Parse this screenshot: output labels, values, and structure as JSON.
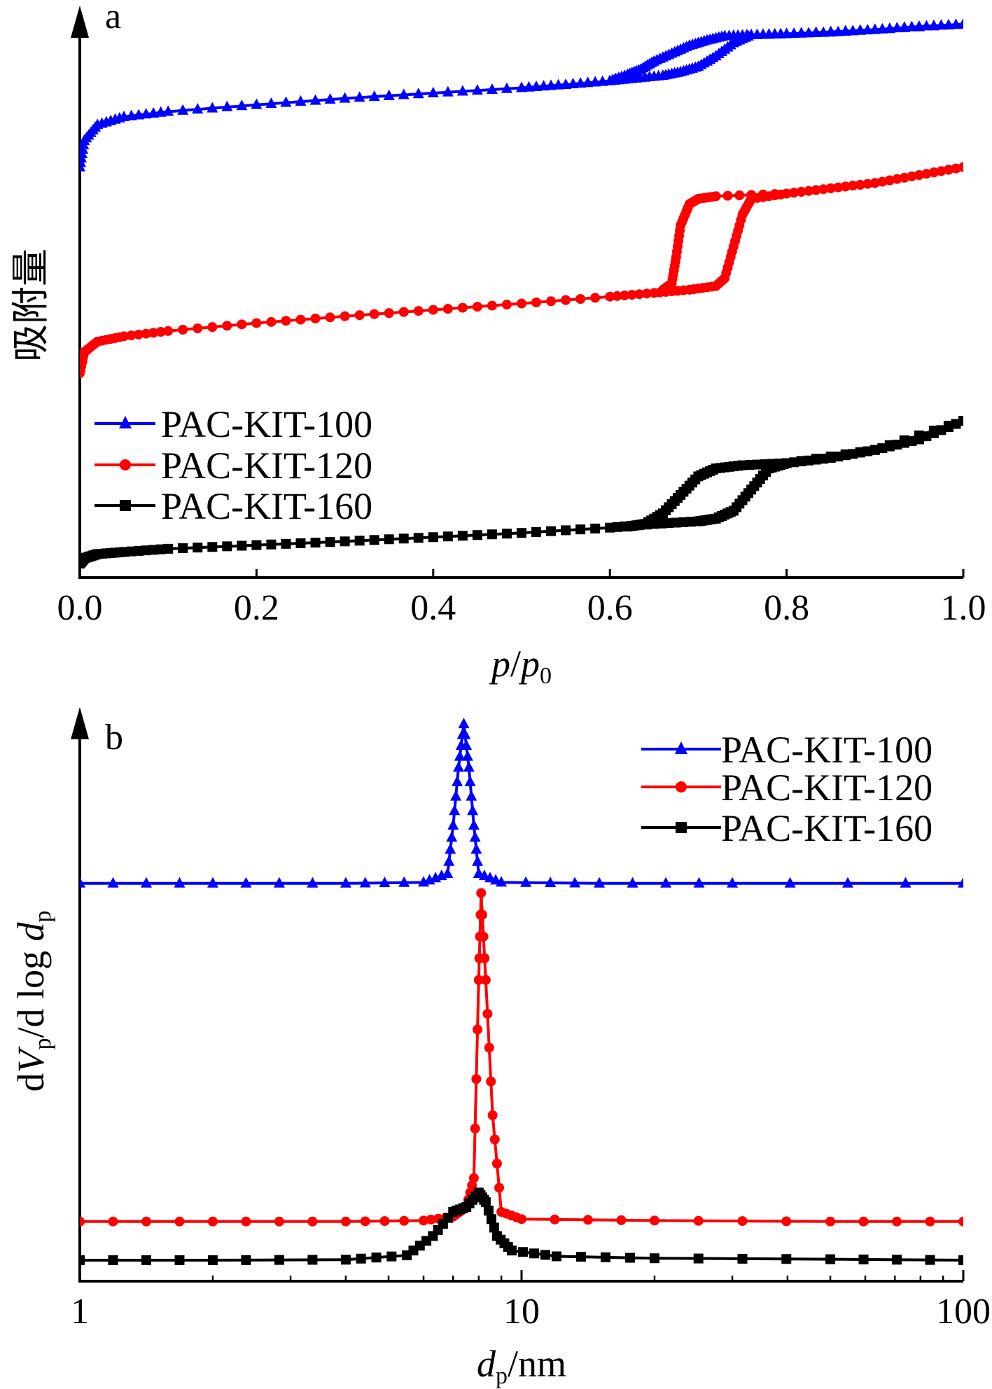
{
  "chart_data": [
    {
      "panel": "a",
      "type": "line",
      "xlabel": "p/p0",
      "xlabel_parts": {
        "main": "p",
        "slash": "/",
        "main2": "p",
        "sub": "0"
      },
      "ylabel": "吸附量",
      "xlim": [
        0.0,
        1.0
      ],
      "x_ticks": [
        0.0,
        0.2,
        0.4,
        0.6,
        0.8,
        1.0
      ],
      "x_tick_labels": [
        "0.0",
        "0.2",
        "0.4",
        "0.6",
        "0.8",
        "1.0"
      ],
      "y_ticks_shown": false,
      "legend_position": "lower-left",
      "series": [
        {
          "name": "PAC-KIT-100",
          "color": "#0000FF",
          "marker": "triangle",
          "adsorption": [
            [
              0.0,
              0.75
            ],
            [
              0.005,
              0.8
            ],
            [
              0.02,
              0.83
            ],
            [
              0.05,
              0.845
            ],
            [
              0.1,
              0.855
            ],
            [
              0.2,
              0.868
            ],
            [
              0.3,
              0.88
            ],
            [
              0.4,
              0.89
            ],
            [
              0.5,
              0.9
            ],
            [
              0.55,
              0.906
            ],
            [
              0.6,
              0.913
            ],
            [
              0.63,
              0.918
            ],
            [
              0.66,
              0.923
            ],
            [
              0.68,
              0.93
            ],
            [
              0.7,
              0.94
            ],
            [
              0.72,
              0.96
            ],
            [
              0.74,
              0.985
            ],
            [
              0.76,
              1.0
            ],
            [
              0.8,
              1.002
            ],
            [
              0.85,
              1.005
            ],
            [
              0.9,
              1.01
            ],
            [
              0.95,
              1.016
            ],
            [
              1.0,
              1.02
            ]
          ],
          "desorption": [
            [
              1.0,
              1.02
            ],
            [
              0.9,
              1.01
            ],
            [
              0.8,
              1.002
            ],
            [
              0.76,
              1.0
            ],
            [
              0.73,
              0.998
            ],
            [
              0.71,
              0.99
            ],
            [
              0.69,
              0.98
            ],
            [
              0.67,
              0.965
            ],
            [
              0.65,
              0.95
            ],
            [
              0.635,
              0.935
            ],
            [
              0.62,
              0.925
            ],
            [
              0.6,
              0.913
            ]
          ]
        },
        {
          "name": "PAC-KIT-120",
          "color": "#FF0000",
          "marker": "circle",
          "adsorption": [
            [
              0.0,
              0.36
            ],
            [
              0.005,
              0.4
            ],
            [
              0.02,
              0.42
            ],
            [
              0.05,
              0.43
            ],
            [
              0.1,
              0.44
            ],
            [
              0.2,
              0.455
            ],
            [
              0.3,
              0.468
            ],
            [
              0.4,
              0.48
            ],
            [
              0.5,
              0.492
            ],
            [
              0.6,
              0.505
            ],
            [
              0.65,
              0.512
            ],
            [
              0.69,
              0.518
            ],
            [
              0.72,
              0.525
            ],
            [
              0.73,
              0.54
            ],
            [
              0.74,
              0.6
            ],
            [
              0.75,
              0.66
            ],
            [
              0.76,
              0.69
            ],
            [
              0.8,
              0.7
            ],
            [
              0.85,
              0.71
            ],
            [
              0.9,
              0.72
            ],
            [
              0.95,
              0.735
            ],
            [
              1.0,
              0.75
            ]
          ],
          "desorption": [
            [
              1.0,
              0.75
            ],
            [
              0.9,
              0.72
            ],
            [
              0.8,
              0.7
            ],
            [
              0.72,
              0.695
            ],
            [
              0.7,
              0.69
            ],
            [
              0.69,
              0.68
            ],
            [
              0.68,
              0.64
            ],
            [
              0.675,
              0.58
            ],
            [
              0.67,
              0.53
            ],
            [
              0.66,
              0.518
            ]
          ]
        },
        {
          "name": "PAC-KIT-160",
          "color": "#000000",
          "marker": "square",
          "adsorption": [
            [
              0.0,
              0.0
            ],
            [
              0.005,
              0.01
            ],
            [
              0.02,
              0.018
            ],
            [
              0.05,
              0.022
            ],
            [
              0.1,
              0.028
            ],
            [
              0.2,
              0.035
            ],
            [
              0.3,
              0.042
            ],
            [
              0.4,
              0.05
            ],
            [
              0.5,
              0.058
            ],
            [
              0.6,
              0.068
            ],
            [
              0.65,
              0.075
            ],
            [
              0.7,
              0.08
            ],
            [
              0.72,
              0.085
            ],
            [
              0.74,
              0.1
            ],
            [
              0.76,
              0.14
            ],
            [
              0.78,
              0.18
            ],
            [
              0.8,
              0.19
            ],
            [
              0.85,
              0.2
            ],
            [
              0.9,
              0.215
            ],
            [
              0.95,
              0.235
            ],
            [
              1.0,
              0.27
            ]
          ],
          "desorption": [
            [
              1.0,
              0.27
            ],
            [
              0.9,
              0.215
            ],
            [
              0.8,
              0.19
            ],
            [
              0.75,
              0.186
            ],
            [
              0.72,
              0.18
            ],
            [
              0.7,
              0.165
            ],
            [
              0.68,
              0.13
            ],
            [
              0.66,
              0.095
            ],
            [
              0.64,
              0.075
            ],
            [
              0.62,
              0.07
            ]
          ]
        }
      ]
    },
    {
      "panel": "b",
      "type": "line",
      "xlabel": "dp/nm",
      "xlabel_parts": {
        "main": "d",
        "sub": "p",
        "unit": "/nm"
      },
      "ylabel": "dVp/d log dp",
      "ylabel_parts": {
        "a": "d",
        "b": "V",
        "b_sub": "p",
        "c": "/d log ",
        "d": "d",
        "d_sub": "p"
      },
      "x_scale": "log",
      "xlim": [
        1,
        100
      ],
      "x_ticks": [
        1,
        10,
        100
      ],
      "x_tick_labels": [
        "1",
        "10",
        "100"
      ],
      "y_ticks_shown": false,
      "legend_position": "top-right",
      "series": [
        {
          "name": "PAC-KIT-100",
          "color": "#0000FF",
          "marker": "triangle",
          "points": [
            [
              1,
              0.78
            ],
            [
              2,
              0.78
            ],
            [
              4,
              0.78
            ],
            [
              6,
              0.782
            ],
            [
              6.8,
              0.8
            ],
            [
              7.0,
              0.9
            ],
            [
              7.2,
              1.02
            ],
            [
              7.4,
              1.11
            ],
            [
              7.6,
              1.02
            ],
            [
              7.8,
              0.9
            ],
            [
              8.0,
              0.8
            ],
            [
              9,
              0.782
            ],
            [
              15,
              0.78
            ],
            [
              30,
              0.78
            ],
            [
              100,
              0.78
            ]
          ]
        },
        {
          "name": "PAC-KIT-120",
          "color": "#FF0000",
          "marker": "circle",
          "points": [
            [
              1,
              0.08
            ],
            [
              2,
              0.08
            ],
            [
              4,
              0.08
            ],
            [
              6,
              0.082
            ],
            [
              7.0,
              0.09
            ],
            [
              7.5,
              0.11
            ],
            [
              7.8,
              0.17
            ],
            [
              8.0,
              0.58
            ],
            [
              8.1,
              0.76
            ],
            [
              8.3,
              0.58
            ],
            [
              8.6,
              0.3
            ],
            [
              9.0,
              0.1
            ],
            [
              10,
              0.085
            ],
            [
              20,
              0.082
            ],
            [
              50,
              0.08
            ],
            [
              100,
              0.08
            ]
          ]
        },
        {
          "name": "PAC-KIT-160",
          "color": "#000000",
          "marker": "square",
          "points": [
            [
              1,
              0.0
            ],
            [
              2,
              0.0
            ],
            [
              4,
              0.001
            ],
            [
              5.5,
              0.01
            ],
            [
              6.3,
              0.05
            ],
            [
              7.0,
              0.1
            ],
            [
              7.5,
              0.11
            ],
            [
              8.0,
              0.14
            ],
            [
              8.3,
              0.12
            ],
            [
              8.8,
              0.05
            ],
            [
              9.5,
              0.02
            ],
            [
              12,
              0.008
            ],
            [
              20,
              0.004
            ],
            [
              50,
              0.002
            ],
            [
              100,
              0.0
            ]
          ]
        }
      ]
    }
  ]
}
